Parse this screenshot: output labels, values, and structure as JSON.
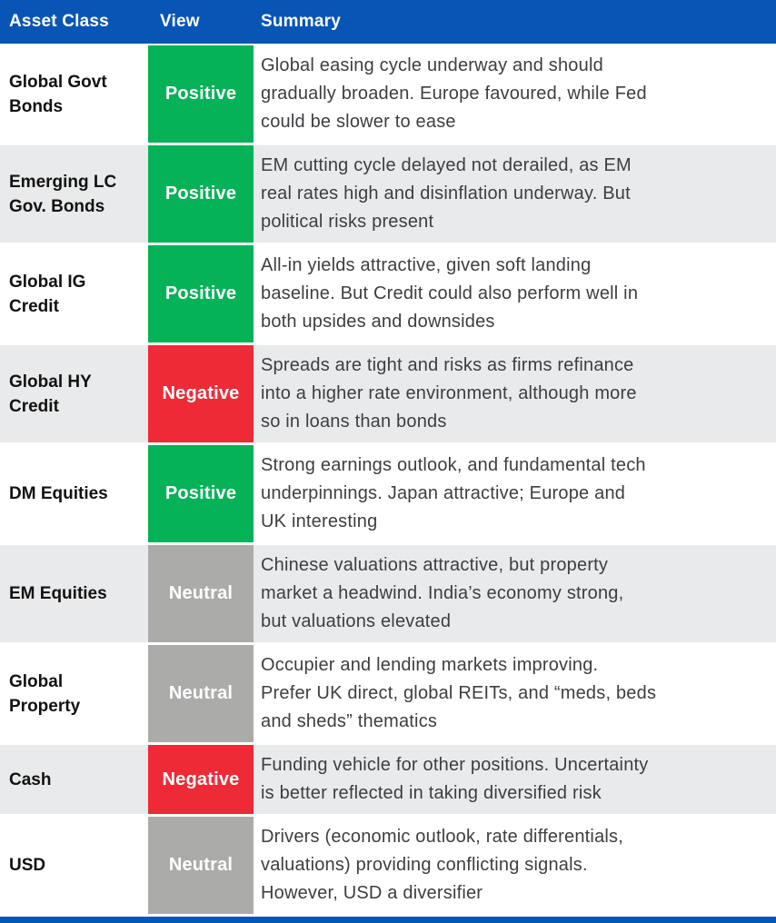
{
  "header": {
    "columns": [
      "Asset Class",
      "View",
      "Summary"
    ]
  },
  "colors": {
    "header_blue": "#0855b5",
    "alt_row_grey": "#e9eaeb",
    "view_colors": {
      "Positive": "#06b257",
      "Negative": "#ee2a37",
      "Neutral": "#abaca9"
    }
  },
  "rows": [
    {
      "asset": "Global Govt Bonds",
      "view": "Positive",
      "summary": "Global easing cycle underway and should\ngradually broaden. Europe favoured, while Fed\ncould be slower to ease"
    },
    {
      "asset": "Emerging LC Gov. Bonds",
      "view": "Positive",
      "summary": "EM cutting cycle delayed not derailed, as EM\nreal rates high and disinflation underway. But\npolitical risks present"
    },
    {
      "asset": "Global IG Credit",
      "view": "Positive",
      "summary": "All-in yields attractive, given soft landing\nbaseline. But Credit could also perform well in\nboth upsides and downsides"
    },
    {
      "asset": "Global HY Credit",
      "view": "Negative",
      "summary": "Spreads are tight and risks as firms refinance\ninto a higher rate environment, although more\nso in loans than bonds"
    },
    {
      "asset": "DM Equities",
      "view": "Positive",
      "summary": "Strong earnings outlook, and fundamental tech\nunderpinnings. Japan attractive; Europe and\nUK interesting"
    },
    {
      "asset": "EM Equities",
      "view": "Neutral",
      "summary": "Chinese valuations attractive, but property\nmarket a headwind. India’s economy strong,\nbut valuations elevated"
    },
    {
      "asset": "Global Property",
      "view": "Neutral",
      "summary": "Occupier and lending markets improving.\nPrefer UK direct, global REITs, and “meds, beds\nand sheds” thematics"
    },
    {
      "asset": "Cash",
      "view": "Negative",
      "summary": "Funding vehicle for other positions. Uncertainty\nis better reflected in taking diversified risk"
    },
    {
      "asset": "USD",
      "view": "Neutral",
      "summary": "Drivers (economic outlook, rate differentials,\nvaluations) providing conflicting signals.\nHowever, USD a diversifier"
    }
  ]
}
